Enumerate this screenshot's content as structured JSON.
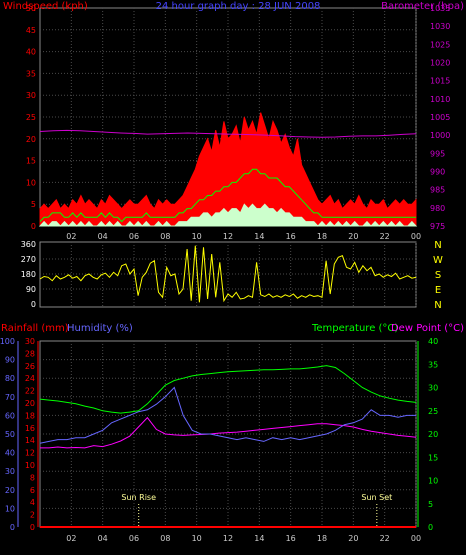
{
  "chart_data": [
    {
      "type": "line",
      "title": "24 hour graph day : 28 JUN 2008",
      "left_axis_label": "Windspeed (kph)",
      "right_axis_label": "Barometer (hpa)",
      "x_ticks": [
        "02",
        "04",
        "06",
        "08",
        "10",
        "12",
        "14",
        "16",
        "18",
        "20",
        "22",
        "00"
      ],
      "left_ticks": [
        "0",
        "5",
        "10",
        "15",
        "20",
        "25",
        "30",
        "35",
        "40",
        "45",
        "50"
      ],
      "right_ticks": [
        "975",
        "980",
        "985",
        "990",
        "995",
        "1000",
        "1005",
        "1010",
        "1015",
        "1020",
        "1025",
        "1030",
        "1035"
      ],
      "ylim_left": [
        0,
        50
      ],
      "ylim_right": [
        975,
        1035
      ],
      "xlim_hours": [
        0,
        24
      ],
      "grid": true,
      "colors": {
        "gust": "#ff0000",
        "average": "#00ff00",
        "wind_min": "#ccffcc",
        "barometer": "#cc00cc"
      },
      "series": [
        {
          "key": "gust",
          "values": [
            4,
            5,
            4,
            5,
            6,
            4,
            5,
            4,
            6,
            5,
            7,
            5,
            6,
            5,
            4,
            6,
            5,
            7,
            6,
            5,
            4,
            5,
            6,
            5,
            5,
            6,
            7,
            5,
            4,
            6,
            5,
            6,
            5,
            5,
            6,
            7,
            9,
            11,
            13,
            16,
            18,
            20,
            17,
            22,
            18,
            24,
            20,
            21,
            23,
            19,
            25,
            22,
            24,
            21,
            26,
            23,
            20,
            24,
            22,
            19,
            21,
            18,
            16,
            20,
            14,
            12,
            10,
            8,
            6,
            5,
            6,
            7,
            5,
            6,
            4,
            5,
            6,
            5,
            7,
            5,
            4,
            6,
            5,
            5,
            6,
            4,
            5,
            6,
            5,
            6,
            5,
            5,
            6
          ]
        },
        {
          "key": "average",
          "values": [
            1,
            2,
            2,
            3,
            3,
            3,
            2,
            2,
            3,
            2,
            3,
            2,
            2,
            2,
            2,
            3,
            2,
            3,
            2,
            2,
            1,
            2,
            2,
            2,
            2,
            2,
            3,
            2,
            2,
            2,
            2,
            2,
            2,
            2,
            3,
            3,
            4,
            4,
            5,
            6,
            6,
            7,
            7,
            8,
            8,
            9,
            9,
            10,
            10,
            11,
            12,
            12,
            13,
            13,
            12,
            12,
            11,
            11,
            11,
            10,
            9,
            9,
            8,
            7,
            6,
            5,
            4,
            3,
            3,
            2,
            2,
            2,
            2,
            2,
            2,
            2,
            2,
            2,
            2,
            2,
            2,
            2,
            2,
            2,
            2,
            2,
            2,
            2,
            2,
            2,
            2,
            2,
            2
          ]
        },
        {
          "key": "wind_min",
          "values": [
            0,
            1,
            0,
            1,
            1,
            0,
            1,
            0,
            1,
            0,
            1,
            0,
            1,
            0,
            0,
            1,
            0,
            1,
            0,
            1,
            0,
            0,
            1,
            0,
            1,
            0,
            1,
            0,
            0,
            1,
            0,
            1,
            0,
            0,
            1,
            1,
            1,
            2,
            2,
            2,
            3,
            3,
            2,
            3,
            3,
            4,
            3,
            4,
            4,
            3,
            5,
            4,
            5,
            4,
            4,
            5,
            4,
            4,
            3,
            4,
            3,
            3,
            2,
            2,
            2,
            1,
            1,
            1,
            0,
            1,
            0,
            1,
            0,
            1,
            0,
            1,
            0,
            1,
            0,
            0,
            1,
            0,
            1,
            0,
            1,
            0,
            1,
            0,
            1,
            0,
            0,
            1,
            0
          ]
        },
        {
          "key": "barometer",
          "values": [
            1001,
            1001.2,
            1001.3,
            1001.2,
            1001,
            1000.8,
            1000.6,
            1000.5,
            1000.3,
            1000.4,
            1000.5,
            1000.6,
            1000.5,
            1000.4,
            1000.3,
            1000.2,
            1000.1,
            1000,
            999.8,
            999.6,
            999.5,
            999.4,
            999.5,
            999.7,
            999.8,
            999.8,
            1000,
            1000.2,
            1000.4
          ]
        }
      ]
    },
    {
      "type": "line",
      "left_ticks": [
        "0",
        "90",
        "180",
        "270",
        "360"
      ],
      "right_labels": [
        "N",
        "W",
        "S",
        "E",
        "N"
      ],
      "ylim": [
        0,
        360
      ],
      "grid": true,
      "colors": {
        "direction": "#ffff00"
      },
      "series": [
        {
          "key": "direction",
          "values": [
            150,
            165,
            160,
            140,
            170,
            150,
            160,
            175,
            155,
            165,
            140,
            170,
            180,
            160,
            150,
            175,
            185,
            160,
            190,
            170,
            230,
            240,
            180,
            210,
            50,
            160,
            190,
            245,
            260,
            70,
            40,
            220,
            170,
            180,
            60,
            90,
            330,
            20,
            350,
            10,
            340,
            30,
            300,
            40,
            250,
            20,
            60,
            40,
            70,
            30,
            35,
            50,
            40,
            250,
            55,
            45,
            60,
            40,
            50,
            40,
            55,
            45,
            60,
            35,
            50,
            40,
            55,
            45,
            50,
            40,
            260,
            60,
            240,
            280,
            290,
            220,
            210,
            250,
            190,
            230,
            200,
            220,
            170,
            180,
            160,
            175,
            165,
            185,
            150,
            160,
            170,
            155,
            160
          ]
        }
      ]
    },
    {
      "type": "line",
      "left_axis_label_1": "Rainfall (mm)",
      "left_axis_label_2": "Humidity (%)",
      "right_axis_label_1": "Temperature (°C)",
      "right_axis_label_2": "Dew Point (°C)",
      "humidity_ticks": [
        "0",
        "10",
        "20",
        "30",
        "40",
        "50",
        "60",
        "70",
        "80",
        "90",
        "100"
      ],
      "rainfall_ticks": [
        "0",
        "2",
        "4",
        "6",
        "8",
        "10",
        "12",
        "14",
        "16",
        "18",
        "20",
        "22",
        "24",
        "26",
        "28",
        "30"
      ],
      "temperature_ticks": [
        "0",
        "5",
        "10",
        "15",
        "20",
        "25",
        "30",
        "35",
        "40"
      ],
      "x_ticks": [
        "02",
        "04",
        "06",
        "08",
        "10",
        "12",
        "14",
        "16",
        "18",
        "20",
        "22",
        "00"
      ],
      "ylim_humidity": [
        0,
        100
      ],
      "ylim_temperature": [
        0,
        40
      ],
      "grid": true,
      "colors": {
        "temperature": "#00ff00",
        "humidity": "#6666ff",
        "dew_point": "#ff00ff",
        "rainfall": "#ff0000",
        "sun": "#ffff99"
      },
      "annotations": [
        {
          "text": "Sun Rise",
          "hour": 6.3
        },
        {
          "text": "Sun Set",
          "hour": 21.5
        }
      ],
      "series": [
        {
          "key": "temperature",
          "values": [
            27.5,
            27.3,
            27.1,
            26.8,
            26.5,
            26.0,
            25.6,
            25.0,
            24.7,
            24.5,
            24.7,
            25.0,
            26.5,
            28.5,
            30.5,
            31.5,
            32.0,
            32.5,
            32.8,
            33.0,
            33.2,
            33.4,
            33.5,
            33.6,
            33.7,
            33.8,
            33.8,
            33.9,
            34.0,
            34.0,
            34.2,
            34.4,
            34.7,
            34.3,
            33.0,
            31.5,
            30.0,
            29.0,
            28.2,
            27.7,
            27.3,
            27.0,
            26.8
          ]
        },
        {
          "key": "humidity",
          "values": [
            45,
            46,
            47,
            47,
            48,
            48,
            50,
            52,
            56,
            58,
            60,
            62,
            63,
            66,
            70,
            75,
            60,
            52,
            50,
            50,
            49,
            48,
            47,
            48,
            47,
            46,
            48,
            47,
            48,
            47,
            48,
            49,
            50,
            52,
            55,
            56,
            58,
            63,
            60,
            60,
            59,
            60,
            60
          ]
        },
        {
          "key": "dew_point",
          "values": [
            17.0,
            17.0,
            17.2,
            17.0,
            17.1,
            17.0,
            17.5,
            17.3,
            17.8,
            18.5,
            19.5,
            21.5,
            23.5,
            21.0,
            20.0,
            19.8,
            19.7,
            19.8,
            19.9,
            20.0,
            20.2,
            20.3,
            20.4,
            20.6,
            20.8,
            21.0,
            21.2,
            21.4,
            21.6,
            21.8,
            22.0,
            22.2,
            22.2,
            22.0,
            21.8,
            21.5,
            21.0,
            20.6,
            20.3,
            20.0,
            19.7,
            19.5,
            19.3
          ]
        },
        {
          "key": "rainfall",
          "values": [
            0,
            0,
            0,
            0,
            0,
            0,
            0,
            0,
            0,
            0,
            0,
            0,
            0,
            0,
            0,
            0,
            0,
            0,
            0,
            0,
            0,
            0,
            0,
            0,
            0
          ]
        }
      ]
    }
  ]
}
